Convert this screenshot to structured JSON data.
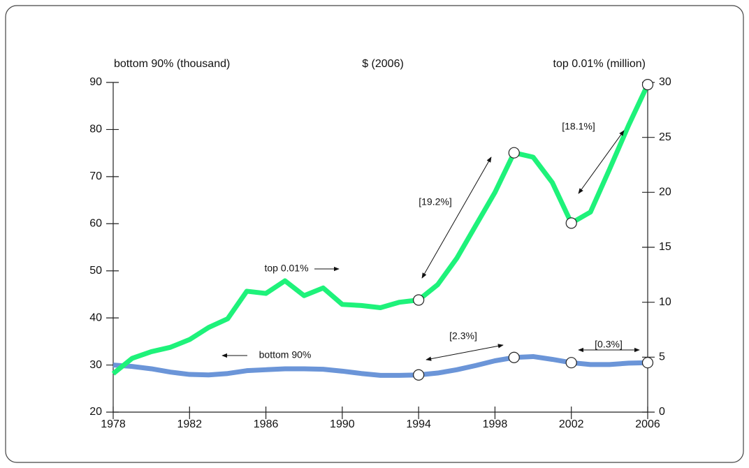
{
  "chart_data": {
    "type": "line",
    "header": [
      "bottom 90% (thousand)",
      "$ (2006)",
      "top 0.01% (million)"
    ],
    "x": [
      1978,
      1979,
      1980,
      1981,
      1982,
      1983,
      1984,
      1985,
      1986,
      1987,
      1988,
      1989,
      1990,
      1991,
      1992,
      1993,
      1994,
      1995,
      1996,
      1997,
      1998,
      1999,
      2000,
      2001,
      2002,
      2003,
      2004,
      2005,
      2006
    ],
    "xlim": [
      1978,
      2006
    ],
    "xticks": [
      1978,
      1982,
      1986,
      1990,
      1994,
      1998,
      2002,
      2006
    ],
    "ylim": [
      20,
      90
    ],
    "yticks": [
      20,
      30,
      40,
      50,
      60,
      70,
      80,
      90
    ],
    "y2lim": [
      0,
      30
    ],
    "y2ticks": [
      0,
      5,
      10,
      15,
      20,
      25,
      30
    ],
    "highlight_x": [
      1994,
      1999,
      2002,
      2006
    ],
    "series": [
      {
        "name": "bottom 90%",
        "color": "#6b95d8",
        "axis": "y",
        "values": [
          30,
          29.7,
          29.2,
          28.5,
          28.0,
          27.9,
          28.2,
          28.8,
          29.0,
          29.2,
          29.2,
          29.1,
          28.7,
          28.2,
          27.8,
          27.8,
          27.9,
          28.3,
          29.0,
          29.9,
          30.9,
          31.6,
          31.8,
          31.2,
          30.5,
          30.1,
          30.1,
          30.4,
          30.5
        ]
      },
      {
        "name": "top 0.01%",
        "color": "#1ef27a",
        "axis": "y2",
        "values": [
          3.5,
          4.9,
          5.5,
          5.9,
          6.6,
          7.7,
          8.5,
          11.0,
          10.8,
          11.95,
          10.6,
          11.3,
          9.8,
          9.7,
          9.5,
          10.0,
          10.2,
          11.6,
          14.0,
          17.0,
          20.0,
          23.6,
          23.2,
          20.9,
          17.2,
          18.2,
          22.1,
          26.1,
          29.8
        ]
      }
    ],
    "annotations": [
      "[19.2%]",
      "[18.1%]",
      "[2.3%]",
      "[0.3%]",
      "top 0.01%",
      "bottom 90%"
    ]
  }
}
